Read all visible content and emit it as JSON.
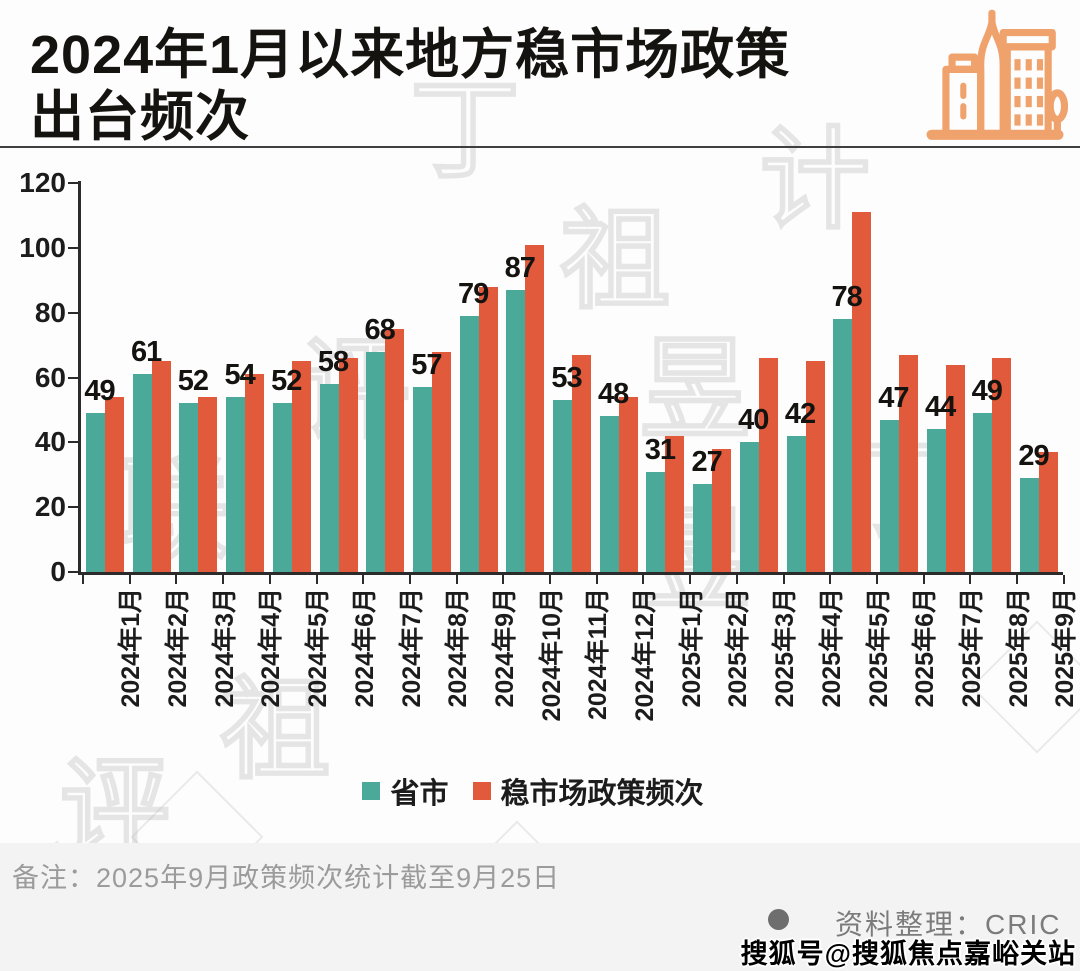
{
  "title": {
    "line1": "2024年1月以来地方稳市场政策",
    "line2": "出台频次"
  },
  "icon": {
    "name": "buildings-icon",
    "color": "#EFA26C"
  },
  "chart_data": {
    "type": "bar",
    "title": "2024年1月以来地方稳市场政策出台频次",
    "categories": [
      "2024年1月",
      "2024年2月",
      "2024年3月",
      "2024年4月",
      "2024年5月",
      "2024年6月",
      "2024年7月",
      "2024年8月",
      "2024年9月",
      "2024年10月",
      "2024年11月",
      "2024年12月",
      "2025年1月",
      "2025年2月",
      "2025年3月",
      "2025年4月",
      "2025年5月",
      "2025年6月",
      "2025年7月",
      "2025年8月",
      "2025年9月"
    ],
    "series": [
      {
        "name": "省市",
        "color": "#4AA999",
        "values": [
          49,
          61,
          52,
          54,
          52,
          58,
          68,
          57,
          79,
          87,
          53,
          48,
          31,
          27,
          40,
          42,
          78,
          47,
          44,
          49,
          29
        ]
      },
      {
        "name": "稳市场政策频次",
        "color": "#E25A3C",
        "values": [
          54,
          65,
          54,
          61,
          65,
          66,
          75,
          68,
          88,
          101,
          67,
          54,
          42,
          38,
          66,
          65,
          111,
          67,
          64,
          66,
          37
        ]
      }
    ],
    "value_labels_series": "省市",
    "xlabel": "",
    "ylabel": "",
    "ylim": [
      0,
      120
    ],
    "yticks": [
      0,
      20,
      40,
      60,
      80,
      100,
      120
    ],
    "grid": false,
    "legend_position": "bottom"
  },
  "note": "备注：2025年9月政策频次统计截至9月25日",
  "source": {
    "bullet": "●",
    "text": "资料整理：CRIC"
  },
  "footer_watermark": "搜狐号@搜狐焦点嘉峪关站",
  "background_watermark": {
    "characters": [
      "丁",
      "祖",
      "昱",
      "评",
      "联",
      "计"
    ]
  },
  "colors": {
    "series_teal": "#4AA999",
    "series_orange": "#E25A3C",
    "axis": "#2b2b2b",
    "title_text": "#151310",
    "note_gray": "#9b9b9b",
    "source_gray": "#7b7b7b",
    "icon_orange": "#EFA26C",
    "footer_band": "#f3f3f3"
  }
}
